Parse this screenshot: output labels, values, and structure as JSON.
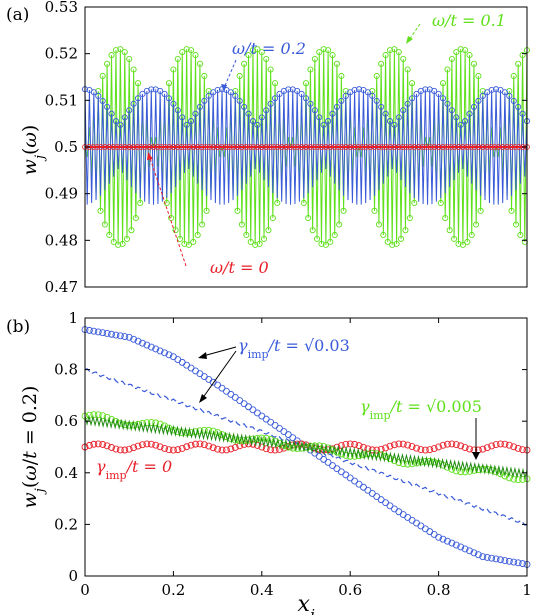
{
  "colors": {
    "blue": "#3a5bd9",
    "green": "#5ee01a",
    "red": "#e8202a",
    "dark_green": "#1f8a10"
  },
  "chart_data": [
    {
      "panel_label": "(a)",
      "type": "line",
      "ylabel": "w_j(ω)",
      "ylim": [
        0.47,
        0.53
      ],
      "y_ticks": [
        "0.47",
        "0.48",
        "0.49",
        "0.5",
        "0.51",
        "0.52",
        "0.53"
      ],
      "x_range": [
        0,
        1
      ],
      "series": [
        {
          "label": "ω/t = 0.1",
          "color": "#5ee01a",
          "center": 0.5,
          "amplitude": 0.021,
          "envelope_period": 0.155,
          "markers": "circle"
        },
        {
          "label": "ω/t = 0.2",
          "color": "#3a5bd9",
          "center": 0.5,
          "amplitude": 0.015,
          "envelope_period": 0.155,
          "markers": "circle"
        },
        {
          "label": "ω/t = 0",
          "color": "#e8202a",
          "center": 0.5,
          "amplitude": 0.0,
          "markers": "circle"
        }
      ],
      "annotations": [
        {
          "text": "ω/t = 0.2",
          "color": "#3a5bd9"
        },
        {
          "text": "ω/t = 0.1",
          "color": "#5ee01a"
        },
        {
          "text": "ω/t = 0",
          "color": "#e8202a"
        }
      ]
    },
    {
      "panel_label": "(b)",
      "type": "line",
      "xlabel": "x_j",
      "ylabel": "w_j(ω/t = 0.2)",
      "xlim": [
        0,
        1
      ],
      "ylim": [
        0,
        1
      ],
      "x_ticks": [
        "0",
        "0.2",
        "0.4",
        "0.6",
        "0.8",
        "1"
      ],
      "y_ticks": [
        "0",
        "0.2",
        "0.4",
        "0.6",
        "0.8",
        "1"
      ],
      "series": [
        {
          "label": "γimp/t = √0.03",
          "color": "#3a5bd9",
          "style": "circles",
          "x": [
            0,
            0.1,
            0.2,
            0.3,
            0.4,
            0.5,
            0.6,
            0.7,
            0.8,
            0.9,
            1.0
          ],
          "y": [
            0.955,
            0.925,
            0.85,
            0.74,
            0.62,
            0.5,
            0.38,
            0.26,
            0.15,
            0.075,
            0.045
          ]
        },
        {
          "label": "γimp/t = √0.03",
          "color": "#3a5bd9",
          "style": "dashed",
          "x": [
            0,
            1
          ],
          "y": [
            0.8,
            0.2
          ]
        },
        {
          "label": "γimp/t = √0.005",
          "color": "#5ee01a",
          "style": "circles-oscillating",
          "x": [
            0,
            1
          ],
          "y": [
            0.62,
            0.38
          ],
          "osc_amplitude": 0.012
        },
        {
          "label": "γimp/t = √0.005",
          "color": "#1f8a10",
          "style": "solid-oscillating",
          "x": [
            0,
            1
          ],
          "y": [
            0.605,
            0.395
          ],
          "osc_amplitude": 0.015
        },
        {
          "label": "γimp/t = 0",
          "color": "#e8202a",
          "style": "circles-oscillating",
          "x": [
            0,
            1
          ],
          "y": [
            0.5,
            0.5
          ],
          "osc_amplitude": 0.012
        }
      ],
      "annotations": [
        {
          "text": "γimp/t = √0.03",
          "color": "#3a5bd9"
        },
        {
          "text": "γimp/t = √0.005",
          "color": "#5ee01a"
        },
        {
          "text": "γimp/t = 0",
          "color": "#e8202a"
        }
      ]
    }
  ]
}
